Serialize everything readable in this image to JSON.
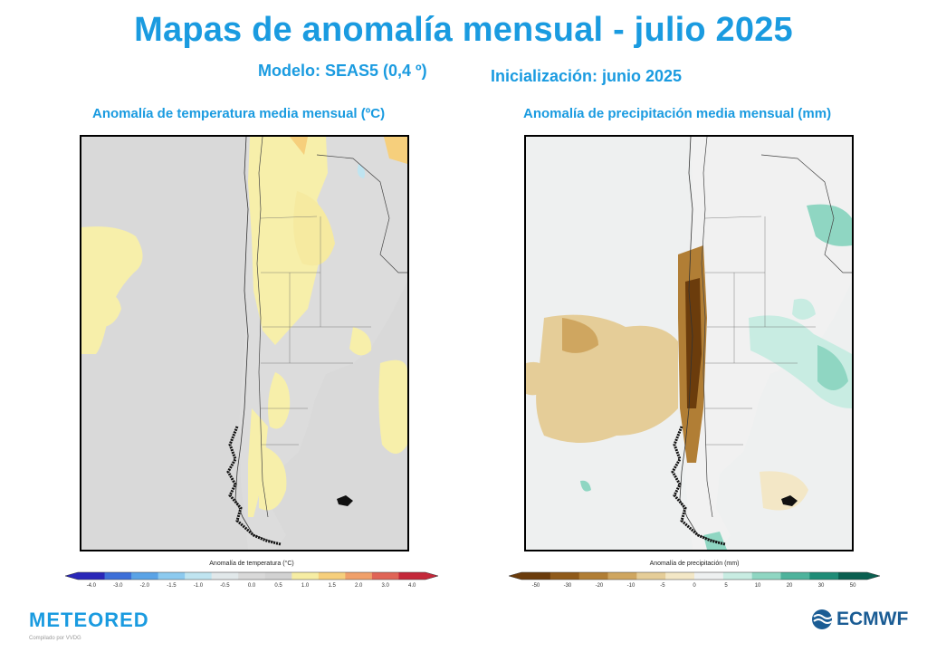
{
  "header": {
    "title": "Mapas de anomalía mensual - julio 2025",
    "model": "Modelo: SEAS5 (0,4 º)",
    "init": "Inicialización: junio 2025"
  },
  "maps": [
    {
      "title": "Anomalía de temperatura media mensual (ºC)",
      "colorbar_title": "Anomalía de temperatura (°C)",
      "ticks": [
        "-4.0",
        "-3.0",
        "-2.0",
        "-1.5",
        "-1.0",
        "-0.5",
        "0.0",
        "0.5",
        "1.0",
        "1.5",
        "2.0",
        "3.0",
        "4.0"
      ],
      "colors": [
        "#2a27b8",
        "#3d6fd8",
        "#5aa3e6",
        "#8ccaef",
        "#bfe4f0",
        "#e1e8ea",
        "#d9d9d9",
        "#d2d2d2",
        "#f6eda3",
        "#f6cf7c",
        "#f0a06a",
        "#e06456",
        "#c4283a"
      ]
    },
    {
      "title": "Anomalía de precipitación media mensual (mm)",
      "colorbar_title": "Anomalía de precipitación (mm)",
      "ticks": [
        "-50",
        "-30",
        "-20",
        "-10",
        "-5",
        "0",
        "5",
        "10",
        "20",
        "30",
        "50"
      ],
      "colors": [
        "#6b3c0c",
        "#8f5a1a",
        "#b17e35",
        "#cfa660",
        "#e5cd98",
        "#f3e7c6",
        "#eef0f0",
        "#c8ece2",
        "#8fd6c2",
        "#4eb39c",
        "#1f8c77",
        "#0a5f50"
      ]
    }
  ],
  "footer": {
    "brand_left": "METEORED",
    "credit": "Compilado por VVDG",
    "brand_right": "ECMWF"
  }
}
